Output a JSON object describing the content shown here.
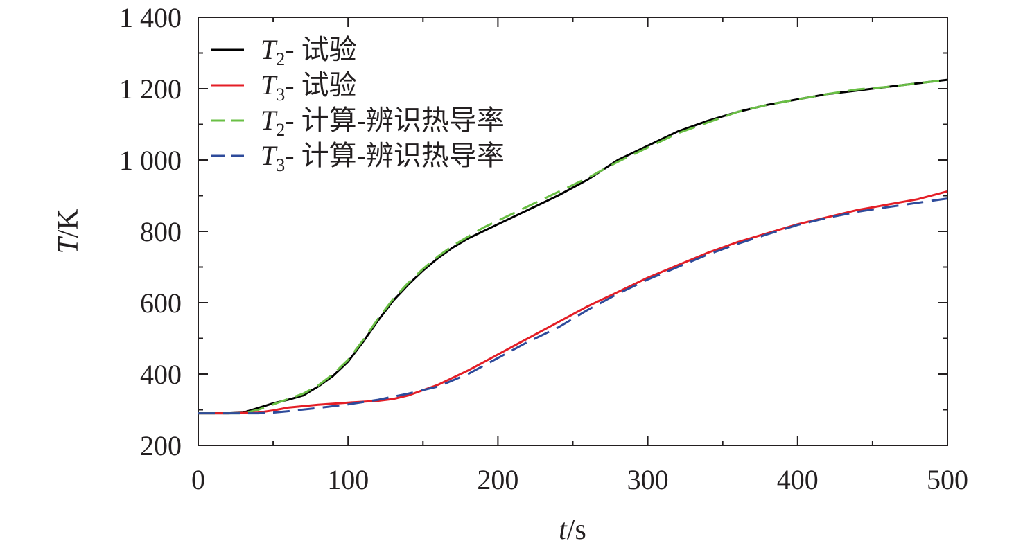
{
  "chart_data": {
    "type": "line",
    "xlabel": {
      "var": "t",
      "unit": "/s"
    },
    "ylabel": {
      "var": "T",
      "unit": "/K"
    },
    "xlim": [
      0,
      500
    ],
    "ylim": [
      200,
      1400
    ],
    "xticks": [
      0,
      100,
      200,
      300,
      400,
      500
    ],
    "yticks": [
      200,
      400,
      600,
      800,
      1000,
      1200,
      1400
    ],
    "ytick_labels": [
      "200",
      "400",
      "600",
      "800",
      "1 000",
      "1 200",
      "1 400"
    ],
    "xtick_labels": [
      "0",
      "100",
      "200",
      "300",
      "400",
      "500"
    ],
    "grid": false,
    "legend_position": "top-left",
    "series": [
      {
        "name": "T2- 试验",
        "sym": "T",
        "sub": "2",
        "suffix": "- 试验",
        "color": "#000000",
        "dash": "solid",
        "x": [
          0,
          20,
          30,
          40,
          50,
          60,
          70,
          80,
          90,
          100,
          110,
          120,
          130,
          140,
          150,
          160,
          170,
          180,
          190,
          200,
          220,
          240,
          260,
          280,
          300,
          320,
          340,
          360,
          380,
          400,
          420,
          440,
          460,
          480,
          500
        ],
        "y": [
          290,
          290,
          292,
          305,
          318,
          328,
          340,
          365,
          395,
          435,
          490,
          550,
          605,
          650,
          690,
          725,
          755,
          780,
          800,
          820,
          860,
          900,
          945,
          1000,
          1040,
          1080,
          1110,
          1135,
          1155,
          1170,
          1185,
          1195,
          1205,
          1215,
          1225
        ]
      },
      {
        "name": "T3- 试验",
        "sym": "T",
        "sub": "3",
        "suffix": "- 试验",
        "color": "#e41e26",
        "dash": "solid",
        "x": [
          0,
          20,
          40,
          50,
          60,
          80,
          100,
          120,
          130,
          140,
          160,
          180,
          200,
          220,
          240,
          260,
          280,
          300,
          320,
          340,
          360,
          380,
          400,
          420,
          440,
          460,
          480,
          500
        ],
        "y": [
          290,
          290,
          292,
          298,
          306,
          314,
          320,
          325,
          330,
          340,
          370,
          410,
          455,
          500,
          545,
          590,
          630,
          670,
          705,
          740,
          770,
          795,
          820,
          840,
          860,
          875,
          890,
          912
        ]
      },
      {
        "name": "T2- 计算-辨识热导率",
        "sym": "T",
        "sub": "2",
        "suffix": "- 计算-辨识热导率",
        "color": "#6abf45",
        "dash": "dashed",
        "x": [
          0,
          20,
          30,
          40,
          50,
          60,
          70,
          80,
          90,
          100,
          110,
          120,
          130,
          140,
          150,
          160,
          170,
          180,
          190,
          200,
          220,
          240,
          260,
          280,
          300,
          320,
          340,
          360,
          380,
          400,
          420,
          440,
          460,
          480,
          500
        ],
        "y": [
          290,
          290,
          290,
          300,
          315,
          330,
          345,
          368,
          400,
          440,
          495,
          555,
          610,
          655,
          695,
          730,
          760,
          785,
          810,
          830,
          870,
          910,
          950,
          995,
          1035,
          1075,
          1105,
          1135,
          1155,
          1170,
          1185,
          1198,
          1205,
          1215,
          1225
        ]
      },
      {
        "name": "T3- 计算-辨识热导率",
        "sym": "T",
        "sub": "3",
        "suffix": "- 计算-辨识热导率",
        "color": "#2e4b9b",
        "dash": "dashed",
        "x": [
          0,
          20,
          40,
          50,
          60,
          80,
          100,
          120,
          140,
          160,
          180,
          200,
          220,
          240,
          260,
          280,
          300,
          320,
          340,
          360,
          380,
          400,
          420,
          440,
          460,
          480,
          500
        ],
        "y": [
          290,
          290,
          290,
          292,
          296,
          305,
          315,
          328,
          345,
          365,
          400,
          445,
          490,
          530,
          580,
          625,
          665,
          700,
          735,
          765,
          792,
          818,
          838,
          855,
          868,
          880,
          892
        ]
      }
    ]
  }
}
